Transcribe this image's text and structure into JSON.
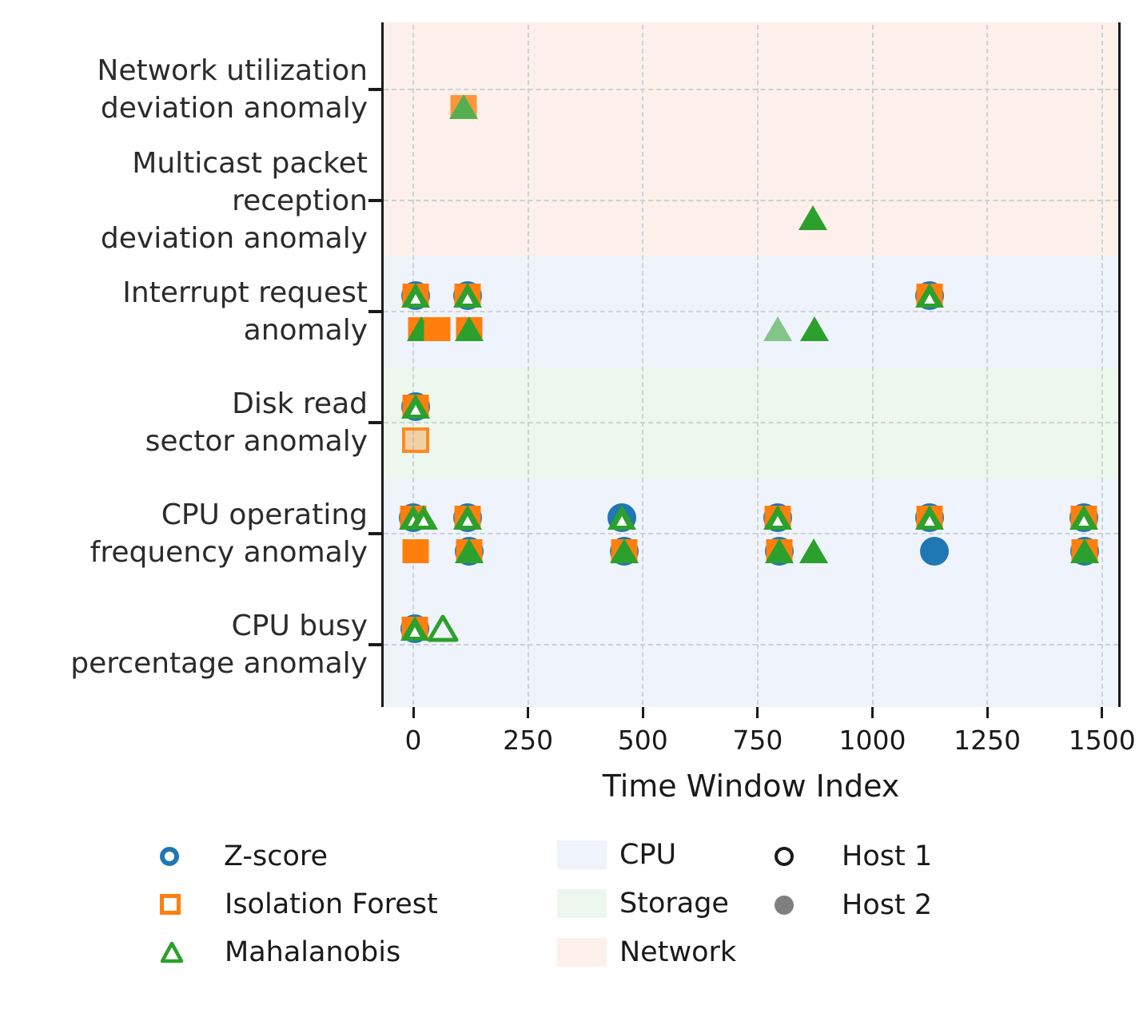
{
  "chart_data": {
    "type": "scatter",
    "title": "",
    "xlabel": "Time Window Index",
    "x_tick_values": [
      0,
      250,
      500,
      750,
      1000,
      1250,
      1500
    ],
    "x_tick_labels": [
      "0",
      "250",
      "500",
      "750",
      "1000",
      "1250",
      "1500"
    ],
    "xlim": [
      -70,
      1540
    ],
    "grid": true,
    "legend_position": "below",
    "categories": [
      {
        "label": "Network utilization\ndeviation anomaly",
        "resource": "network"
      },
      {
        "label": "Multicast packet\nreception\ndeviation anomaly",
        "resource": "network"
      },
      {
        "label": "Interrupt request\nanomaly",
        "resource": "cpu"
      },
      {
        "label": "Disk read\nsector anomaly",
        "resource": "storage"
      },
      {
        "label": "CPU operating\nfrequency anomaly",
        "resource": "cpu"
      },
      {
        "label": "CPU busy\npercentage anomaly",
        "resource": "cpu"
      }
    ],
    "detectors": [
      {
        "id": "z",
        "label": "Z-score",
        "color": "#1f77b4",
        "marker": "circle"
      },
      {
        "id": "if",
        "label": "Isolation Forest",
        "color": "#ff7f0e",
        "marker": "square"
      },
      {
        "id": "mh",
        "label": "Mahalanobis",
        "color": "#2ca02c",
        "marker": "triangle"
      }
    ],
    "resources": [
      {
        "id": "cpu",
        "label": "CPU",
        "color": "#eff3fb"
      },
      {
        "id": "storage",
        "label": "Storage",
        "color": "#ecf7ed"
      },
      {
        "id": "network",
        "label": "Network",
        "color": "#fdf0ea"
      }
    ],
    "hosts": [
      {
        "id": 1,
        "label": "Host 1",
        "style": "open",
        "color": "#1a1a1a"
      },
      {
        "id": 2,
        "label": "Host 2",
        "style": "filled",
        "color": "#7f7f7f"
      }
    ],
    "points": [
      {
        "category": 0,
        "host": 2,
        "x": 110,
        "detectors": [
          "if",
          "mh"
        ],
        "opacity": 0.8
      },
      {
        "category": 1,
        "host": 2,
        "x": 870,
        "detectors": [
          "mh"
        ]
      },
      {
        "category": 2,
        "host": 1,
        "x": 5,
        "detectors": [
          "z",
          "if",
          "mh"
        ]
      },
      {
        "category": 2,
        "host": 1,
        "x": 118,
        "detectors": [
          "z",
          "if",
          "mh"
        ]
      },
      {
        "category": 2,
        "host": 1,
        "x": 1125,
        "detectors": [
          "z",
          "if",
          "mh"
        ]
      },
      {
        "category": 2,
        "host": 2,
        "x": 18,
        "detectors": [
          "if",
          "mh"
        ]
      },
      {
        "category": 2,
        "host": 2,
        "x": 52,
        "detectors": [
          "if"
        ]
      },
      {
        "category": 2,
        "host": 2,
        "x": 122,
        "detectors": [
          "if",
          "mh"
        ]
      },
      {
        "category": 2,
        "host": 2,
        "x": 794,
        "detectors": [
          "mh"
        ],
        "opacity": 0.55
      },
      {
        "category": 2,
        "host": 2,
        "x": 873,
        "detectors": [
          "mh"
        ]
      },
      {
        "category": 3,
        "host": 1,
        "x": 5,
        "detectors": [
          "z",
          "if",
          "mh"
        ]
      },
      {
        "category": 3,
        "host": 2,
        "x": 5,
        "detectors": [
          "if"
        ],
        "open": true,
        "opacity": 0.9
      },
      {
        "category": 4,
        "host": 1,
        "x": 0,
        "detectors": [
          "z",
          "if",
          "mh"
        ]
      },
      {
        "category": 4,
        "host": 1,
        "x": 22,
        "detectors": [
          "mh"
        ]
      },
      {
        "category": 4,
        "host": 1,
        "x": 118,
        "detectors": [
          "z",
          "if",
          "mh"
        ]
      },
      {
        "category": 4,
        "host": 1,
        "x": 455,
        "detectors": [
          "z",
          "mh"
        ]
      },
      {
        "category": 4,
        "host": 1,
        "x": 794,
        "detectors": [
          "z",
          "if",
          "mh"
        ]
      },
      {
        "category": 4,
        "host": 1,
        "x": 1125,
        "detectors": [
          "z",
          "if",
          "mh"
        ]
      },
      {
        "category": 4,
        "host": 1,
        "x": 1460,
        "detectors": [
          "z",
          "if",
          "mh"
        ]
      },
      {
        "category": 4,
        "host": 2,
        "x": 5,
        "detectors": [
          "if"
        ]
      },
      {
        "category": 4,
        "host": 2,
        "x": 122,
        "detectors": [
          "z",
          "if",
          "mh"
        ]
      },
      {
        "category": 4,
        "host": 2,
        "x": 460,
        "detectors": [
          "z",
          "if",
          "mh"
        ]
      },
      {
        "category": 4,
        "host": 2,
        "x": 797,
        "detectors": [
          "z",
          "if",
          "mh"
        ]
      },
      {
        "category": 4,
        "host": 2,
        "x": 872,
        "detectors": [
          "mh"
        ]
      },
      {
        "category": 4,
        "host": 2,
        "x": 1135,
        "detectors": [
          "z"
        ]
      },
      {
        "category": 4,
        "host": 2,
        "x": 1463,
        "detectors": [
          "z",
          "if",
          "mh"
        ]
      },
      {
        "category": 5,
        "host": 1,
        "x": 3,
        "detectors": [
          "z",
          "if",
          "mh"
        ]
      },
      {
        "category": 5,
        "host": 1,
        "x": 65,
        "detectors": [
          "mh"
        ],
        "open": true
      }
    ]
  }
}
